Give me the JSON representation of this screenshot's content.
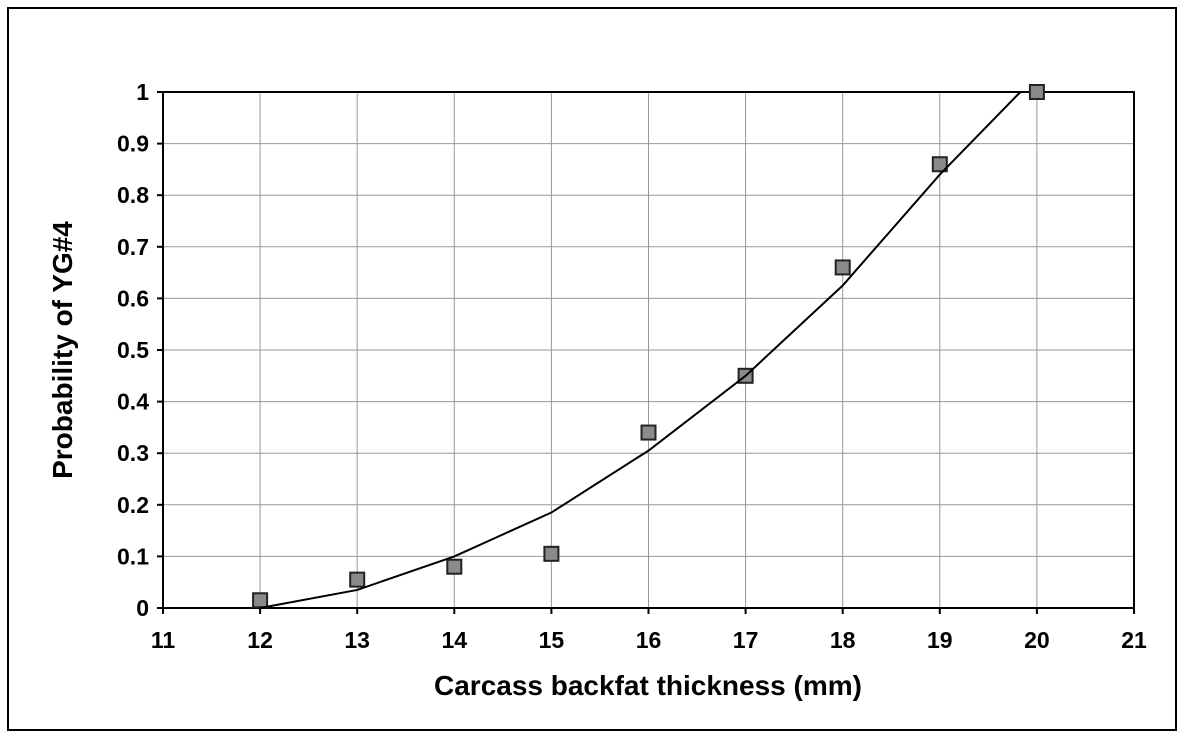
{
  "chart_data": {
    "type": "scatter",
    "xlabel": "Carcass backfat thickness (mm)",
    "ylabel": "Probability of YG#4",
    "xlim": [
      11,
      21
    ],
    "xticks": [
      11,
      12,
      13,
      14,
      15,
      16,
      17,
      18,
      19,
      20,
      21
    ],
    "ylim": [
      0,
      1
    ],
    "yticks": [
      0,
      0.1,
      0.2,
      0.3,
      0.4,
      0.5,
      0.6,
      0.7,
      0.8,
      0.9,
      1
    ],
    "grid": true,
    "series": [
      {
        "type": "scatter",
        "color": "#8a8a8a",
        "x": [
          12,
          13,
          14,
          15,
          16,
          17,
          18,
          19,
          20
        ],
        "values": [
          0.015,
          0.055,
          0.08,
          0.105,
          0.34,
          0.45,
          0.66,
          0.86,
          1.0
        ]
      },
      {
        "type": "line",
        "color": "#000000",
        "x": [
          12,
          13,
          14,
          15,
          16,
          17,
          18,
          19,
          19.83
        ],
        "values": [
          0,
          0.035,
          0.1,
          0.185,
          0.305,
          0.45,
          0.625,
          0.84,
          1.0
        ]
      }
    ]
  }
}
